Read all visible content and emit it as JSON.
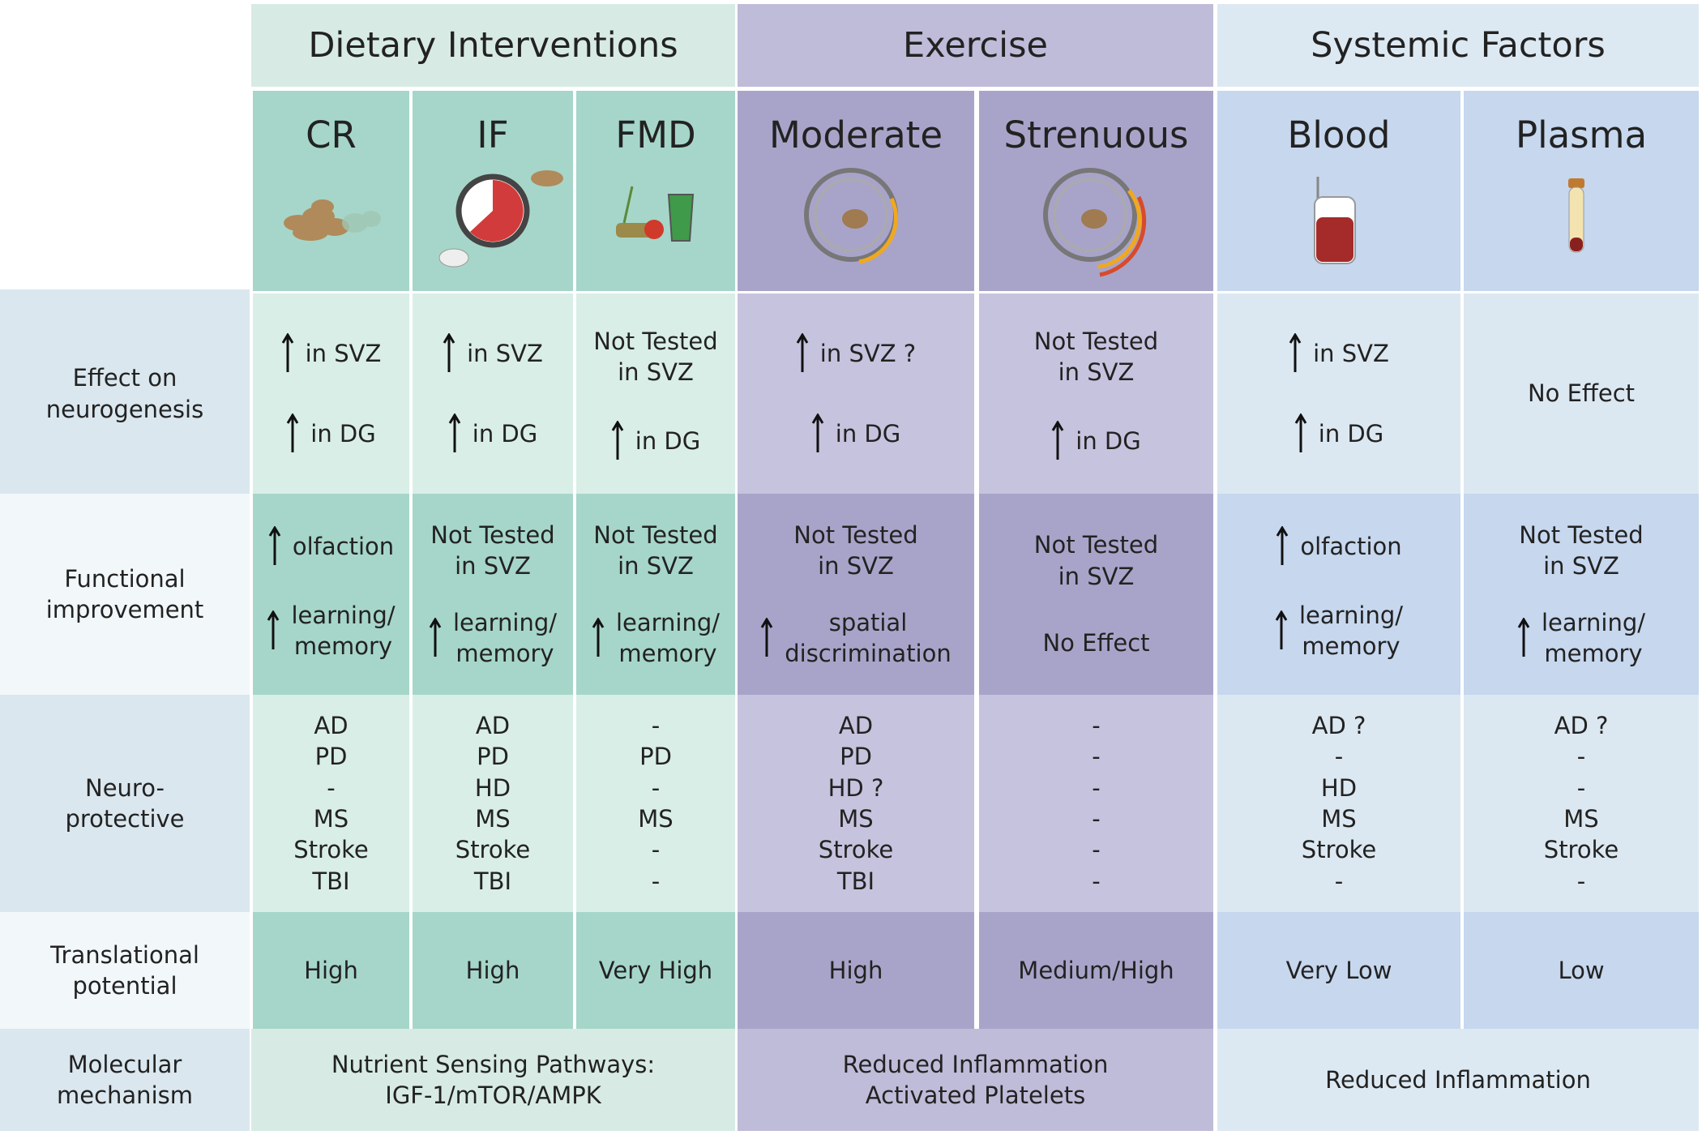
{
  "groups": [
    {
      "title": "Dietary Interventions",
      "columns": [
        "CR",
        "IF",
        "FMD"
      ]
    },
    {
      "title": "Exercise",
      "columns": [
        "Moderate",
        "Strenuous"
      ]
    },
    {
      "title": "Systemic Factors",
      "columns": [
        "Blood",
        "Plasma"
      ]
    }
  ],
  "rows": [
    {
      "label": "Effect on\nneurogenesis",
      "cells": [
        [
          {
            "text": "in SVZ",
            "arrow": true
          },
          {
            "text": "in DG",
            "arrow": true
          }
        ],
        [
          {
            "text": "in SVZ",
            "arrow": true
          },
          {
            "text": "in DG",
            "arrow": true
          }
        ],
        [
          "Not Tested\nin SVZ",
          {
            "text": "in DG",
            "arrow": true
          }
        ],
        [
          {
            "text": "in SVZ ?",
            "arrow": true
          },
          {
            "text": "in DG",
            "arrow": true
          }
        ],
        [
          "Not Tested\nin SVZ",
          {
            "text": "in DG",
            "arrow": true
          }
        ],
        [
          {
            "text": "in SVZ",
            "arrow": true
          },
          {
            "text": "in DG",
            "arrow": true
          }
        ],
        [
          "No Effect"
        ]
      ]
    },
    {
      "label": "Functional\nimprovement",
      "cells": [
        [
          {
            "text": "olfaction",
            "arrow": true
          },
          {
            "text": "learning/\nmemory",
            "arrow": true
          }
        ],
        [
          "Not Tested\nin SVZ",
          {
            "text": "learning/\nmemory",
            "arrow": true
          }
        ],
        [
          "Not Tested\nin SVZ",
          {
            "text": "learning/\nmemory",
            "arrow": true
          }
        ],
        [
          "Not Tested\nin SVZ",
          {
            "text": "spatial\ndiscrimination",
            "arrow": true
          }
        ],
        [
          "Not Tested\nin SVZ",
          "No Effect"
        ],
        [
          {
            "text": "olfaction",
            "arrow": true
          },
          {
            "text": "learning/\nmemory",
            "arrow": true
          }
        ],
        [
          "Not Tested\nin SVZ",
          {
            "text": "learning/\nmemory",
            "arrow": true
          }
        ]
      ]
    },
    {
      "label": "Neuro-\nprotective",
      "cells": [
        [
          "AD",
          "PD",
          "-",
          "MS",
          "Stroke",
          "TBI"
        ],
        [
          "AD",
          "PD",
          "HD",
          "MS",
          "Stroke",
          "TBI"
        ],
        [
          "-",
          "PD",
          "-",
          "MS",
          "-",
          "-"
        ],
        [
          "AD",
          "PD",
          "HD ?",
          "MS",
          "Stroke",
          "TBI"
        ],
        [
          "-",
          "-",
          "-",
          "-",
          "-",
          "-"
        ],
        [
          "AD ?",
          "-",
          "HD",
          "MS",
          "Stroke",
          "-"
        ],
        [
          "AD ?",
          "-",
          "-",
          "MS",
          "Stroke",
          "-"
        ]
      ]
    },
    {
      "label": "Translational\npotential",
      "cells": [
        [
          "High"
        ],
        [
          "High"
        ],
        [
          "Very High"
        ],
        [
          "High"
        ],
        [
          "Medium/High"
        ],
        [
          "Very Low"
        ],
        [
          "Low"
        ]
      ]
    },
    {
      "label": "Molecular\nmechanism",
      "cells": [
        [
          "Nutrient Sensing Pathways:\nIGF-1/mTOR/AMPK"
        ],
        [
          "Reduced Inflammation\nActivated Platelets"
        ],
        [
          "Reduced Inflammation"
        ]
      ]
    }
  ]
}
